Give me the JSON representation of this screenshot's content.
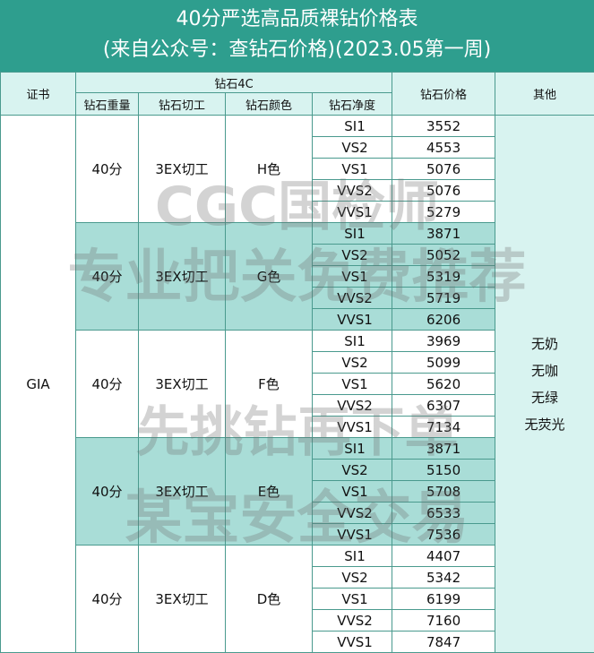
{
  "title": {
    "line1": "40分严选高品质裸钻价格表",
    "line2": "(来自公众号：查钻石价格)(2023.05第一周)"
  },
  "headers": {
    "cert": "证书",
    "fourc": "钻石4C",
    "price": "钻石价格",
    "other": "其他",
    "weight": "钻石重量",
    "cut": "钻石切工",
    "color": "钻石颜色",
    "clarity": "钻石净度"
  },
  "cert_value": "GIA",
  "other_lines": [
    "无奶",
    "无咖",
    "无绿",
    "无荧光"
  ],
  "groups": [
    {
      "weight": "40分",
      "cut": "3EX切工",
      "color": "H色",
      "rows": [
        [
          "SI1",
          "3552"
        ],
        [
          "VS2",
          "4553"
        ],
        [
          "VS1",
          "5076"
        ],
        [
          "VVS2",
          "5076"
        ],
        [
          "VVS1",
          "5279"
        ]
      ]
    },
    {
      "weight": "40分",
      "cut": "3EX切工",
      "color": "G色",
      "rows": [
        [
          "SI1",
          "3871"
        ],
        [
          "VS2",
          "5052"
        ],
        [
          "VS1",
          "5319"
        ],
        [
          "VVS2",
          "5719"
        ],
        [
          "VVS1",
          "6206"
        ]
      ]
    },
    {
      "weight": "40分",
      "cut": "3EX切工",
      "color": "F色",
      "rows": [
        [
          "SI1",
          "3969"
        ],
        [
          "VS2",
          "5099"
        ],
        [
          "VS1",
          "5620"
        ],
        [
          "VVS2",
          "6307"
        ],
        [
          "VVS1",
          "7134"
        ]
      ]
    },
    {
      "weight": "40分",
      "cut": "3EX切工",
      "color": "E色",
      "rows": [
        [
          "SI1",
          "3871"
        ],
        [
          "VS2",
          "5150"
        ],
        [
          "VS1",
          "5708"
        ],
        [
          "VVS2",
          "6533"
        ],
        [
          "VVS1",
          "7536"
        ]
      ]
    },
    {
      "weight": "40分",
      "cut": "3EX切工",
      "color": "D色",
      "rows": [
        [
          "SI1",
          "4407"
        ],
        [
          "VS2",
          "5342"
        ],
        [
          "VS1",
          "6199"
        ],
        [
          "VVS2",
          "7160"
        ],
        [
          "VVS1",
          "7847"
        ]
      ]
    }
  ],
  "watermarks": [
    "CGC国检师",
    "专业把关免费推荐",
    "先挑钻再下单",
    "某宝安全交易"
  ]
}
